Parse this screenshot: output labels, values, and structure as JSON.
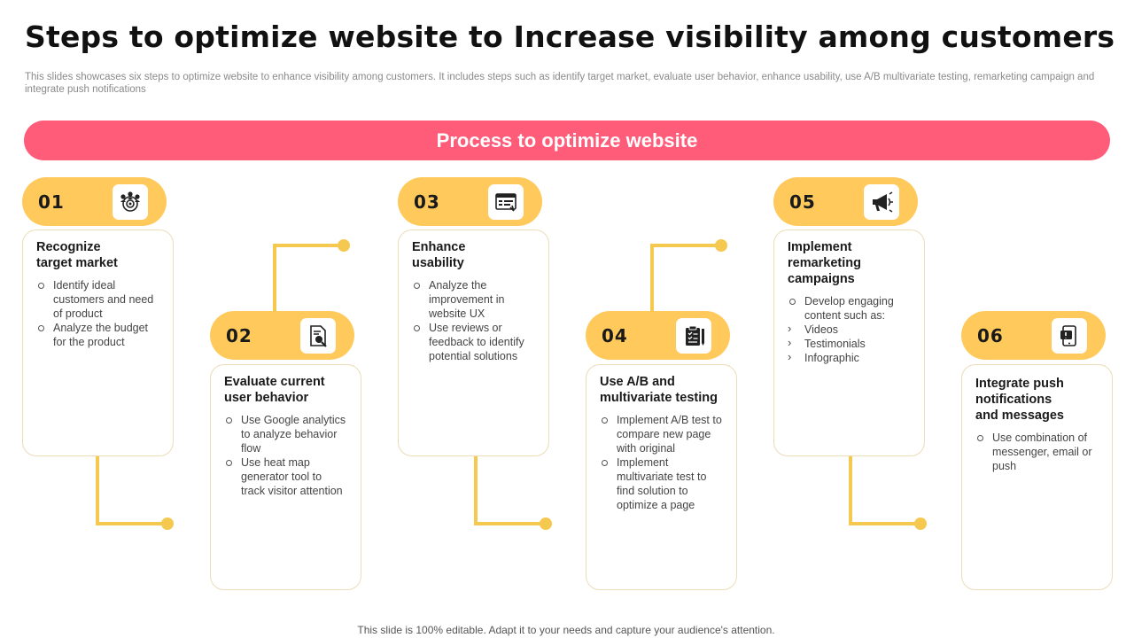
{
  "title": "Steps to optimize website to Increase visibility among customers",
  "subtitle": "This slides showcases six steps to optimize website to enhance visibility among customers. It includes steps such as identify target market, evaluate user behavior, enhance usability, use A/B  multivariate testing, remarketing campaign and integrate push notifications",
  "banner": "Process to optimize website",
  "steps": [
    {
      "num": "01",
      "icon": "target-audience-icon",
      "title": "Recognize target market",
      "bullets": [
        "Identify ideal customers and need of product",
        "Analyze the budget for the product"
      ]
    },
    {
      "num": "02",
      "icon": "document-search-icon",
      "title": "Evaluate current user behavior",
      "bullets": [
        "Use Google analytics to analyze behavior flow",
        "Use heat map generator tool to track visitor attention"
      ]
    },
    {
      "num": "03",
      "icon": "browser-window-icon",
      "title": "Enhance usability",
      "bullets": [
        "Analyze the improvement in website UX",
        "Use reviews or feedback to identify potential solutions"
      ]
    },
    {
      "num": "04",
      "icon": "clipboard-test-icon",
      "title": "Use A/B and multivariate testing",
      "bullets": [
        "Implement A/B test to compare new page with original",
        "Implement multivariate test to find solution to optimize a page"
      ]
    },
    {
      "num": "05",
      "icon": "megaphone-icon",
      "title": "Implement remarketing campaigns",
      "bullets": [
        "Develop engaging content such as:"
      ],
      "subbullets": [
        "Videos",
        "Testimonials",
        "Infographic"
      ]
    },
    {
      "num": "06",
      "icon": "mobile-notification-icon",
      "title": "Integrate push notifications and messages",
      "bullets": [
        "Use combination of messenger, email or push"
      ]
    }
  ],
  "footer": "This slide is 100% editable. Adapt it to your needs and capture your audience's attention.",
  "colors": {
    "banner": "#ff5c7a",
    "pill": "#ffc95b",
    "connector": "#f5c84f"
  }
}
